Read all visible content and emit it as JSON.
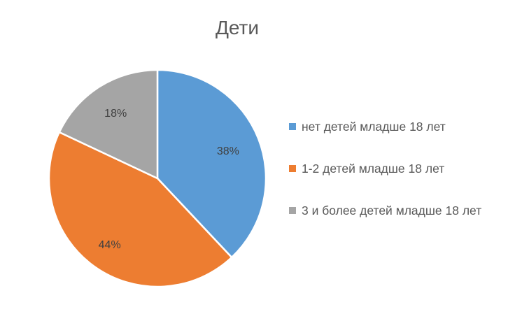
{
  "chart_data": {
    "type": "pie",
    "title": "Дети",
    "categories": [
      "нет детей младше 18 лет",
      "1-2 детей младше 18 лет",
      "3 и более детей младше 18 лет"
    ],
    "values": [
      38,
      44,
      18
    ],
    "labels": [
      "38%",
      "44%",
      "18%"
    ],
    "colors": [
      "#5B9BD5",
      "#ED7D31",
      "#A5A5A5"
    ],
    "legend_position": "right",
    "start_angle_deg": 0,
    "direction": "clockwise"
  },
  "legend": {
    "items": [
      {
        "label": "нет детей младше 18 лет",
        "color": "#5B9BD5"
      },
      {
        "label": "1-2 детей младше 18 лет",
        "color": "#ED7D31"
      },
      {
        "label": "3 и более детей младше 18 лет",
        "color": "#A5A5A5"
      }
    ]
  }
}
